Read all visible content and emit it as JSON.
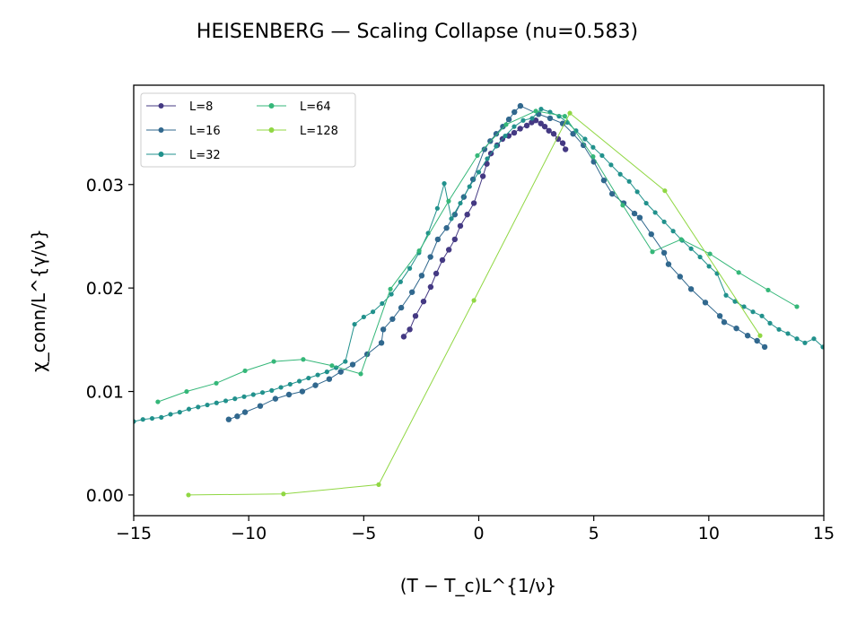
{
  "chart_data": {
    "type": "line",
    "title": "HEISENBERG — Scaling Collapse (nu=0.583)",
    "xlabel": "(T − T_c)L^{1/ν}",
    "ylabel": "χ_conn/L^{γ/ν}",
    "xlim": [
      -15,
      15
    ],
    "ylim": [
      -0.002,
      0.0396
    ],
    "xticks": [
      "−15",
      "−10",
      "−5",
      "0",
      "5",
      "10",
      "15"
    ],
    "xtick_values": [
      -15,
      -10,
      -5,
      0,
      5,
      10,
      15
    ],
    "yticks": [
      "0.00",
      "0.01",
      "0.02",
      "0.03"
    ],
    "ytick_values": [
      0,
      0.01,
      0.02,
      0.03
    ],
    "grid": false,
    "legend_position": "top-left",
    "series": [
      {
        "name": "L=8",
        "color": "#443983",
        "x": [
          -3.26,
          -3.0,
          -2.75,
          -2.4,
          -2.09,
          -1.85,
          -1.58,
          -1.3,
          -1.04,
          -0.8,
          -0.5,
          -0.21,
          0.18,
          0.35,
          0.53,
          0.8,
          1.03,
          1.3,
          1.54,
          1.8,
          2.09,
          2.3,
          2.48,
          2.7,
          2.87,
          3.05,
          3.26,
          3.45,
          3.65,
          3.77
        ],
        "y": [
          0.0153,
          0.016,
          0.0173,
          0.0187,
          0.0201,
          0.0214,
          0.0227,
          0.0237,
          0.0247,
          0.026,
          0.0271,
          0.0282,
          0.0308,
          0.032,
          0.033,
          0.0338,
          0.0344,
          0.0347,
          0.035,
          0.0354,
          0.0357,
          0.036,
          0.0362,
          0.0359,
          0.0356,
          0.0352,
          0.0349,
          0.0344,
          0.034,
          0.0334
        ]
      },
      {
        "name": "L=16",
        "color": "#31688e",
        "x": [
          -10.87,
          -10.5,
          -10.16,
          -9.5,
          -8.84,
          -8.25,
          -7.67,
          -7.1,
          -6.5,
          -6.0,
          -5.48,
          -4.85,
          -4.23,
          -4.15,
          -3.75,
          -3.37,
          -2.9,
          -2.48,
          -2.1,
          -1.78,
          -1.4,
          -1.04,
          -0.65,
          -0.25,
          0.25,
          0.5,
          0.76,
          1.05,
          1.31,
          1.55,
          1.81,
          2.6,
          3.1,
          3.65,
          4.1,
          4.55,
          5.0,
          5.44,
          5.8,
          6.3,
          6.77,
          7.0,
          7.5,
          8.06,
          8.25,
          8.75,
          9.23,
          9.85,
          10.48,
          10.67,
          11.2,
          11.69,
          12.1,
          12.43
        ],
        "y": [
          0.0073,
          0.0076,
          0.008,
          0.0086,
          0.0093,
          0.0097,
          0.01,
          0.0106,
          0.0112,
          0.0119,
          0.0126,
          0.0136,
          0.0147,
          0.016,
          0.017,
          0.0181,
          0.0196,
          0.0212,
          0.023,
          0.0247,
          0.0258,
          0.0271,
          0.0288,
          0.0305,
          0.0334,
          0.0342,
          0.0349,
          0.0356,
          0.0363,
          0.037,
          0.0376,
          0.0368,
          0.0364,
          0.0359,
          0.0349,
          0.0338,
          0.0322,
          0.0304,
          0.0291,
          0.0282,
          0.0272,
          0.0268,
          0.0252,
          0.0234,
          0.0223,
          0.0211,
          0.0199,
          0.0186,
          0.0173,
          0.0167,
          0.0161,
          0.0154,
          0.0149,
          0.0143
        ]
      },
      {
        "name": "L=32",
        "color": "#21918c",
        "x": [
          -15.0,
          -14.6,
          -14.2,
          -13.8,
          -13.4,
          -13.0,
          -12.6,
          -12.2,
          -11.8,
          -11.4,
          -11.0,
          -10.6,
          -10.2,
          -9.8,
          -9.4,
          -9.0,
          -8.6,
          -8.2,
          -7.8,
          -7.4,
          -7.0,
          -6.6,
          -6.2,
          -5.8,
          -5.4,
          -5.0,
          -4.6,
          -4.2,
          -3.8,
          -3.4,
          -3.0,
          -2.6,
          -2.2,
          -1.8,
          -1.5,
          -1.19,
          -0.8,
          -0.4,
          0.0,
          0.37,
          0.76,
          1.15,
          1.54,
          1.93,
          2.32,
          2.71,
          3.1,
          3.49,
          3.85,
          4.23,
          4.62,
          4.97,
          5.36,
          5.75,
          6.15,
          6.54,
          6.89,
          7.28,
          7.67,
          8.06,
          8.45,
          8.84,
          9.23,
          9.62,
          10.01,
          10.36,
          10.75,
          11.14,
          11.53,
          11.92,
          12.31,
          12.66,
          13.05,
          13.44,
          13.83,
          14.18,
          14.57,
          14.96
        ],
        "y": [
          0.0071,
          0.0073,
          0.0074,
          0.0075,
          0.0078,
          0.008,
          0.0083,
          0.0085,
          0.0087,
          0.0089,
          0.0091,
          0.0093,
          0.0095,
          0.0097,
          0.0099,
          0.0101,
          0.0104,
          0.0107,
          0.011,
          0.0113,
          0.0116,
          0.0119,
          0.0123,
          0.0129,
          0.0165,
          0.0172,
          0.0177,
          0.0185,
          0.0194,
          0.0206,
          0.0219,
          0.0234,
          0.0253,
          0.0277,
          0.0301,
          0.0267,
          0.0282,
          0.0298,
          0.0312,
          0.0325,
          0.0337,
          0.0347,
          0.0356,
          0.0362,
          0.0364,
          0.0373,
          0.037,
          0.0366,
          0.036,
          0.0352,
          0.0344,
          0.0336,
          0.0328,
          0.0319,
          0.031,
          0.0303,
          0.0293,
          0.0282,
          0.0273,
          0.0264,
          0.0255,
          0.0246,
          0.0238,
          0.023,
          0.0221,
          0.0214,
          0.0193,
          0.0187,
          0.0182,
          0.0177,
          0.0173,
          0.0166,
          0.016,
          0.0156,
          0.0151,
          0.0147,
          0.0151,
          0.0143
        ]
      },
      {
        "name": "L=64",
        "color": "#35b779",
        "x": [
          -13.95,
          -12.7,
          -11.41,
          -10.16,
          -8.91,
          -7.63,
          -6.38,
          -5.13,
          -3.84,
          -2.59,
          -1.31,
          -0.06,
          1.19,
          2.48,
          3.74,
          4.97,
          6.26,
          7.55,
          8.8,
          10.05,
          11.3,
          12.58,
          13.83
        ],
        "y": [
          0.009,
          0.01,
          0.0108,
          0.012,
          0.0129,
          0.0131,
          0.0125,
          0.0117,
          0.0199,
          0.0236,
          0.0284,
          0.0328,
          0.0358,
          0.0371,
          0.0366,
          0.0327,
          0.028,
          0.0235,
          0.0247,
          0.0233,
          0.0215,
          0.0198,
          0.0182
        ]
      },
      {
        "name": "L=128",
        "color": "#90d743",
        "x": [
          -12.62,
          -8.49,
          -4.35,
          -0.21,
          3.96,
          8.09,
          12.23
        ],
        "y": [
          0.0,
          0.0001,
          0.001,
          0.0188,
          0.0369,
          0.0294,
          0.0154
        ]
      }
    ]
  }
}
